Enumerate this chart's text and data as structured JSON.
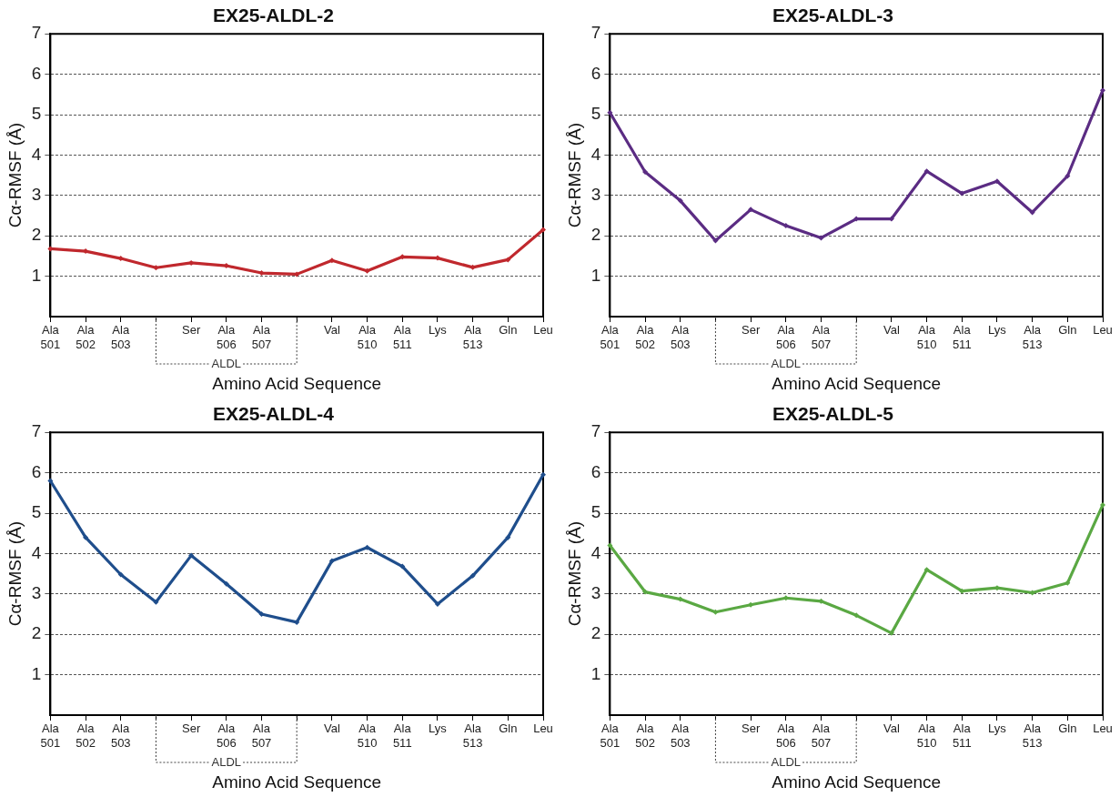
{
  "chart_data": [
    {
      "type": "line",
      "title": "EX25-ALDL-2",
      "xlabel": "Amino Acid Sequence",
      "ylabel": "Cα-RMSF (Å)",
      "categories": [
        "Ala 501",
        "Ala 502",
        "Ala 503",
        null,
        "Ser",
        "Ala 506",
        "Ala 507",
        null,
        "Val",
        "Ala 510",
        "Ala 511",
        "Lys",
        "Ala 513",
        "Gln",
        "Leu"
      ],
      "series": [
        {
          "color": "#c0282d",
          "values": [
            1.68,
            1.62,
            1.44,
            1.21,
            1.33,
            1.26,
            1.08,
            1.05,
            1.39,
            1.13,
            1.48,
            1.45,
            1.22,
            1.41,
            2.15
          ]
        }
      ],
      "ylim": [
        0,
        7
      ],
      "yticks": [
        1,
        2,
        3,
        4,
        5,
        6,
        7
      ],
      "grid": "y",
      "marker": "diamond",
      "annotations": [
        "ALDL"
      ]
    },
    {
      "type": "line",
      "title": "EX25-ALDL-3",
      "xlabel": "Amino Acid Sequence",
      "ylabel": "Cα-RMSF (Å)",
      "categories": [
        "Ala 501",
        "Ala 502",
        "Ala 503",
        null,
        "Ser",
        "Ala 506",
        "Ala 507",
        null,
        "Val",
        "Ala 510",
        "Ala 511",
        "Lys",
        "Ala 513",
        "Gln",
        "Leu"
      ],
      "series": [
        {
          "color": "#5b2c83",
          "values": [
            5.05,
            3.58,
            2.87,
            1.88,
            2.65,
            2.25,
            1.95,
            2.42,
            2.42,
            3.6,
            3.05,
            3.35,
            2.58,
            3.48,
            5.6
          ]
        }
      ],
      "ylim": [
        0,
        7
      ],
      "yticks": [
        1,
        2,
        3,
        4,
        5,
        6,
        7
      ],
      "grid": "y",
      "marker": "diamond",
      "annotations": [
        "ALDL"
      ]
    },
    {
      "type": "line",
      "title": "EX25-ALDL-4",
      "xlabel": "Amino Acid Sequence",
      "ylabel": "Cα-RMSF (Å)",
      "categories": [
        "Ala 501",
        "Ala 502",
        "Ala 503",
        null,
        "Ser",
        "Ala 506",
        "Ala 507",
        null,
        "Val",
        "Ala 510",
        "Ala 511",
        "Lys",
        "Ala 513",
        "Gln",
        "Leu"
      ],
      "series": [
        {
          "color": "#1f4e8c",
          "values": [
            5.8,
            4.4,
            3.48,
            2.8,
            3.95,
            3.25,
            2.5,
            2.3,
            3.82,
            4.15,
            3.68,
            2.75,
            3.45,
            4.4,
            5.95
          ]
        }
      ],
      "ylim": [
        0,
        7
      ],
      "yticks": [
        1,
        2,
        3,
        4,
        5,
        6,
        7
      ],
      "grid": "y",
      "marker": "diamond",
      "annotations": [
        "ALDL"
      ]
    },
    {
      "type": "line",
      "title": "EX25-ALDL-5",
      "xlabel": "Amino Acid Sequence",
      "ylabel": "Cα-RMSF (Å)",
      "categories": [
        "Ala 501",
        "Ala 502",
        "Ala 503",
        null,
        "Ser",
        "Ala 506",
        "Ala 507",
        null,
        "Val",
        "Ala 510",
        "Ala 511",
        "Lys",
        "Ala 513",
        "Gln",
        "Leu"
      ],
      "series": [
        {
          "color": "#5aa843",
          "values": [
            4.2,
            3.05,
            2.87,
            2.55,
            2.73,
            2.9,
            2.82,
            2.47,
            2.03,
            3.6,
            3.07,
            3.15,
            3.03,
            3.27,
            5.2
          ]
        }
      ],
      "ylim": [
        0,
        7
      ],
      "yticks": [
        1,
        2,
        3,
        4,
        5,
        6,
        7
      ],
      "grid": "y",
      "marker": "diamond",
      "annotations": [
        "ALDL"
      ]
    }
  ]
}
